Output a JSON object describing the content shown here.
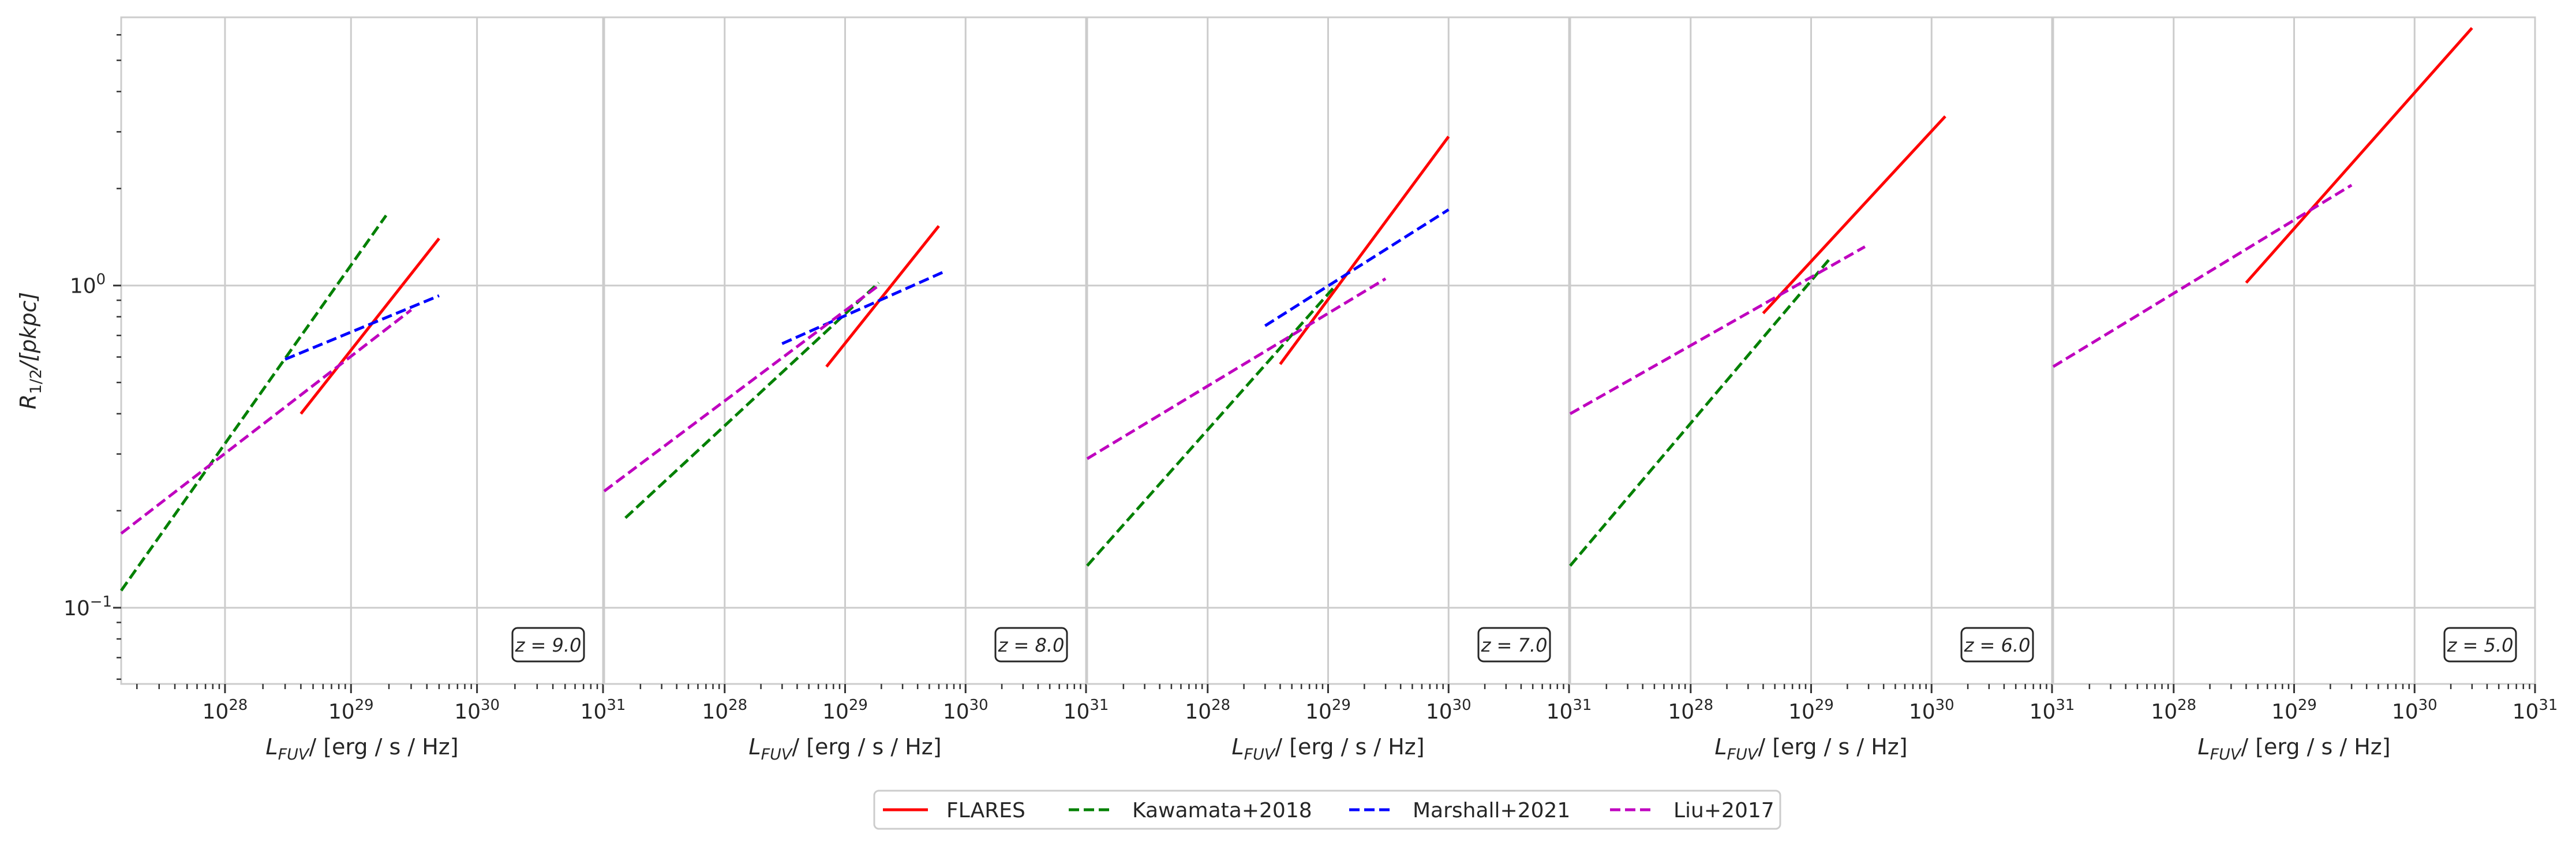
{
  "chart_data": {
    "type": "line",
    "shared_ylabel": "R_{1/2}/[pkpc]",
    "y_scale": "log",
    "ylim": [
      0.058,
      6.8
    ],
    "y_ticks": [
      {
        "value": 0.1,
        "base": "10",
        "exp": "−1"
      },
      {
        "value": 1,
        "base": "10",
        "exp": "0"
      }
    ],
    "x_scale": "log",
    "xlabel_main": "L",
    "xlabel_sub": "FUV",
    "xlabel_rest": "/ [erg / s / Hz]",
    "x_ticks": [
      {
        "value": 1e+28,
        "base": "10",
        "exp": "28"
      },
      {
        "value": 1e+29,
        "base": "10",
        "exp": "29"
      },
      {
        "value": 1e+30,
        "base": "10",
        "exp": "30"
      },
      {
        "value": 1e+31,
        "base": "10",
        "exp": "31"
      }
    ],
    "grid": true,
    "legend_position": "bottom-center",
    "legend": [
      {
        "name": "FLARES",
        "color": "#ff0000",
        "dash": "solid"
      },
      {
        "name": "Kawamata+2018",
        "color": "#008000",
        "dash": "dashed"
      },
      {
        "name": "Marshall+2021",
        "color": "#0000ff",
        "dash": "dashed"
      },
      {
        "name": "Liu+2017",
        "color": "#bf00bf",
        "dash": "dashed"
      }
    ],
    "panels": [
      {
        "z_label": "z = 9.0",
        "xlim": [
          1.5e+27,
          1e+31
        ],
        "series": [
          {
            "name": "FLARES",
            "x": [
              4e+28,
              5e+29
            ],
            "y": [
              0.4,
              1.4
            ]
          },
          {
            "name": "Kawamata+2018",
            "x": [
              1.5e+27,
              1.9e+29
            ],
            "y": [
              0.113,
              1.65
            ]
          },
          {
            "name": "Marshall+2021",
            "x": [
              3e+28,
              5e+29
            ],
            "y": [
              0.59,
              0.93
            ]
          },
          {
            "name": "Liu+2017",
            "x": [
              1.5e+27,
              3e+29
            ],
            "y": [
              0.17,
              0.84
            ]
          }
        ]
      },
      {
        "z_label": "z = 8.0",
        "xlim": [
          1e+27,
          1e+31
        ],
        "series": [
          {
            "name": "FLARES",
            "x": [
              7e+28,
              6e+29
            ],
            "y": [
              0.56,
              1.53
            ]
          },
          {
            "name": "Kawamata+2018",
            "x": [
              1.5e+27,
              1.9e+29
            ],
            "y": [
              0.19,
              1.02
            ]
          },
          {
            "name": "Marshall+2021",
            "x": [
              3e+28,
              6.5e+29
            ],
            "y": [
              0.66,
              1.1
            ]
          },
          {
            "name": "Liu+2017",
            "x": [
              1e+27,
              1.9e+29
            ],
            "y": [
              0.23,
              1.0
            ]
          }
        ]
      },
      {
        "z_label": "z = 7.0",
        "xlim": [
          1e+27,
          1e+31
        ],
        "series": [
          {
            "name": "FLARES",
            "x": [
              4e+28,
              1e+30
            ],
            "y": [
              0.57,
              2.9
            ]
          },
          {
            "name": "Kawamata+2018",
            "x": [
              1e+27,
              1.1e+29
            ],
            "y": [
              0.135,
              0.98
            ]
          },
          {
            "name": "Marshall+2021",
            "x": [
              3e+28,
              1e+30
            ],
            "y": [
              0.75,
              1.72
            ]
          },
          {
            "name": "Liu+2017",
            "x": [
              1e+27,
              3e+29
            ],
            "y": [
              0.29,
              1.05
            ]
          }
        ]
      },
      {
        "z_label": "z = 6.0",
        "xlim": [
          1e+27,
          1e+31
        ],
        "series": [
          {
            "name": "FLARES",
            "x": [
              4e+28,
              1.3e+30
            ],
            "y": [
              0.82,
              3.35
            ]
          },
          {
            "name": "Kawamata+2018",
            "x": [
              1e+27,
              1.4e+29
            ],
            "y": [
              0.135,
              1.2
            ]
          },
          {
            "name": "Liu+2017",
            "x": [
              1e+27,
              2.8e+29
            ],
            "y": [
              0.4,
              1.32
            ]
          }
        ]
      },
      {
        "z_label": "z = 5.0",
        "xlim": [
          1e+27,
          1e+31
        ],
        "series": [
          {
            "name": "FLARES",
            "x": [
              4e+28,
              3e+30
            ],
            "y": [
              1.02,
              6.3
            ]
          },
          {
            "name": "Liu+2017",
            "x": [
              1e+27,
              3e+29
            ],
            "y": [
              0.56,
              2.05
            ]
          }
        ]
      }
    ]
  }
}
